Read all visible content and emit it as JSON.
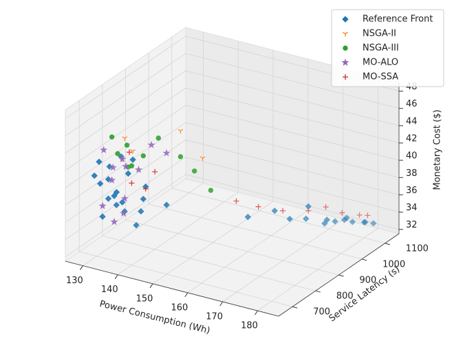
{
  "chart_data": {
    "type": "scatter3d",
    "xlabel": "Power Consumption (Wh)",
    "ylabel": "Service Latency (s)",
    "zlabel": "Monetary Cost ($)",
    "xlim": [
      125,
      186
    ],
    "ylim": [
      640,
      1160
    ],
    "zlim": [
      31.5,
      49
    ],
    "xticks": [
      130,
      140,
      150,
      160,
      170,
      180
    ],
    "yticks": [
      700,
      800,
      900,
      1000,
      1100
    ],
    "zticks": [
      32,
      34,
      36,
      38,
      40,
      42,
      44,
      46,
      48
    ],
    "grid": true,
    "legend": "upper right",
    "series": [
      {
        "name": "Reference Front",
        "color": "#1f77b4",
        "marker": "D",
        "x": [
          130,
          131,
          132,
          132,
          133,
          133,
          134,
          134,
          135,
          135,
          136,
          137,
          138,
          139,
          140,
          141,
          142,
          144,
          146,
          131,
          160,
          165,
          168,
          170,
          172,
          174,
          175,
          176,
          177,
          178,
          179,
          180,
          181,
          182
        ],
        "y": [
          690,
          700,
          680,
          720,
          710,
          740,
          690,
          760,
          700,
          730,
          720,
          680,
          750,
          700,
          740,
          690,
          720,
          700,
          760,
          710,
          900,
          940,
          960,
          1000,
          980,
          1020,
          1050,
          1000,
          1060,
          1080,
          1040,
          1100,
          1090,
          1110
        ],
        "z": [
          41,
          40,
          43,
          38,
          42,
          37,
          41,
          36,
          39,
          43,
          38,
          40,
          35,
          42,
          37,
          44,
          39,
          41,
          38,
          36,
          35.5,
          36,
          35,
          34.5,
          36.5,
          34,
          33.8,
          35,
          34,
          33.5,
          34.8,
          33.3,
          33.6,
          33.2
        ]
      },
      {
        "name": "NSGA-II",
        "color": "#ff7f0e",
        "marker": "v",
        "x": [
          138,
          141,
          150,
          155,
          136
        ],
        "y": [
          700,
          690,
          760,
          780,
          720
        ],
        "z": [
          46,
          45,
          47,
          44,
          43
        ]
      },
      {
        "name": "NSGA-III",
        "color": "#2ca02c",
        "marker": "o",
        "x": [
          135,
          136,
          138,
          140,
          142,
          145,
          150,
          152,
          156,
          137
        ],
        "y": [
          690,
          700,
          710,
          700,
          720,
          740,
          760,
          790,
          800,
          730
        ],
        "z": [
          46,
          44,
          45,
          43,
          44,
          46,
          44,
          42,
          40,
          42
        ]
      },
      {
        "name": "MO-ALO",
        "color": "#9467bd",
        "marker": "*",
        "x": [
          132,
          134,
          135,
          136,
          138,
          140,
          143,
          146,
          133,
          135,
          137,
          139
        ],
        "y": [
          700,
          710,
          690,
          720,
          700,
          730,
          740,
          760,
          680,
          700,
          710,
          690
        ],
        "z": [
          44,
          42,
          41,
          43,
          39,
          42,
          45,
          44,
          38,
          36,
          37,
          43
        ]
      },
      {
        "name": "MO-SSA",
        "color": "#d62728",
        "marker": "+",
        "x": [
          138,
          140,
          142,
          144,
          158,
          163,
          168,
          172,
          175,
          177,
          180,
          181
        ],
        "y": [
          720,
          700,
          730,
          740,
          880,
          900,
          930,
          980,
          1010,
          1050,
          1080,
          1100
        ],
        "z": [
          44,
          41,
          40,
          42,
          37.5,
          37,
          36.5,
          36,
          36.2,
          35,
          34.5,
          34.2
        ]
      }
    ]
  }
}
